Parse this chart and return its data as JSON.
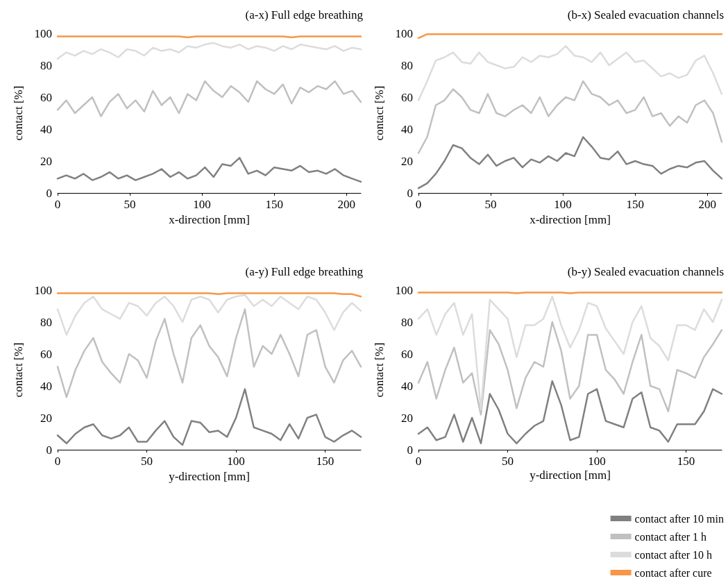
{
  "chart_data": [
    {
      "type": "line",
      "title": "(a-x) Full edge breathing",
      "xlabel": "x-direction [mm]",
      "ylabel": "contact [%]",
      "xlim": [
        0,
        210
      ],
      "xticks": [
        0,
        50,
        100,
        150,
        200
      ],
      "ylim": [
        0,
        100
      ],
      "yticks": [
        0,
        20,
        40,
        60,
        80,
        100
      ],
      "grid": false,
      "legend": false,
      "marker": "none",
      "line_style": "solid",
      "x": [
        0,
        6,
        12,
        18,
        24,
        30,
        36,
        42,
        48,
        54,
        60,
        66,
        72,
        78,
        84,
        90,
        96,
        102,
        108,
        114,
        120,
        126,
        132,
        138,
        144,
        150,
        156,
        162,
        168,
        174,
        180,
        186,
        192,
        198,
        204,
        210
      ],
      "series": [
        {
          "color": "#808080",
          "values": [
            9,
            11,
            9,
            12,
            8,
            10,
            13,
            9,
            11,
            8,
            10,
            12,
            15,
            10,
            13,
            9,
            11,
            16,
            10,
            18,
            17,
            22,
            12,
            14,
            11,
            16,
            15,
            14,
            17,
            13,
            14,
            12,
            15,
            11,
            9,
            7
          ]
        },
        {
          "color": "#c0c0c0",
          "values": [
            52,
            58,
            50,
            55,
            60,
            48,
            57,
            62,
            53,
            58,
            51,
            64,
            55,
            60,
            50,
            62,
            58,
            70,
            64,
            60,
            67,
            63,
            57,
            70,
            65,
            62,
            68,
            56,
            66,
            63,
            67,
            65,
            70,
            62,
            64,
            57
          ]
        },
        {
          "color": "#dcdcdc",
          "values": [
            84,
            88,
            86,
            89,
            87,
            90,
            88,
            85,
            90,
            89,
            86,
            91,
            89,
            90,
            88,
            92,
            91,
            93,
            94,
            92,
            91,
            93,
            90,
            92,
            91,
            89,
            92,
            90,
            93,
            92,
            91,
            90,
            92,
            89,
            91,
            90
          ]
        },
        {
          "color": "#f79646",
          "values": [
            98,
            98,
            98,
            98,
            98,
            98,
            98,
            98,
            98,
            98,
            98,
            98,
            98,
            98,
            98,
            97.5,
            98,
            98,
            98,
            98,
            98,
            98,
            98,
            98,
            98,
            98,
            98,
            97.5,
            98,
            98,
            98,
            98,
            98,
            98,
            98,
            98
          ]
        }
      ]
    },
    {
      "type": "line",
      "title": "(b-x) Sealed evacuation channels",
      "xlabel": "x-direction [mm]",
      "ylabel": "contact [%]",
      "xlim": [
        0,
        210
      ],
      "xticks": [
        0,
        50,
        100,
        150,
        200
      ],
      "ylim": [
        0,
        100
      ],
      "yticks": [
        0,
        20,
        40,
        60,
        80,
        100
      ],
      "grid": false,
      "legend": false,
      "marker": "none",
      "line_style": "solid",
      "x": [
        0,
        6,
        12,
        18,
        24,
        30,
        36,
        42,
        48,
        54,
        60,
        66,
        72,
        78,
        84,
        90,
        96,
        102,
        108,
        114,
        120,
        126,
        132,
        138,
        144,
        150,
        156,
        162,
        168,
        174,
        180,
        186,
        192,
        198,
        204,
        210
      ],
      "series": [
        {
          "color": "#808080",
          "values": [
            3,
            6,
            12,
            20,
            30,
            28,
            22,
            18,
            24,
            17,
            20,
            22,
            16,
            21,
            19,
            23,
            20,
            25,
            23,
            35,
            29,
            22,
            21,
            26,
            18,
            20,
            18,
            17,
            12,
            15,
            17,
            16,
            19,
            20,
            14,
            9
          ]
        },
        {
          "color": "#c0c0c0",
          "values": [
            25,
            35,
            55,
            58,
            65,
            60,
            52,
            50,
            62,
            50,
            48,
            52,
            55,
            50,
            60,
            48,
            55,
            60,
            58,
            70,
            62,
            60,
            55,
            58,
            50,
            52,
            60,
            48,
            50,
            42,
            48,
            44,
            55,
            58,
            50,
            32
          ]
        },
        {
          "color": "#dcdcdc",
          "values": [
            58,
            70,
            83,
            85,
            88,
            82,
            81,
            88,
            82,
            80,
            78,
            79,
            85,
            82,
            86,
            85,
            87,
            92,
            86,
            85,
            82,
            88,
            80,
            84,
            88,
            82,
            83,
            78,
            73,
            75,
            72,
            74,
            83,
            86,
            75,
            62
          ]
        },
        {
          "color": "#f79646",
          "values": [
            97,
            99.5,
            99.5,
            99.5,
            99.5,
            99.5,
            99.5,
            99.5,
            99.5,
            99.5,
            99.5,
            99.5,
            99.5,
            99.5,
            99.5,
            99.5,
            99.5,
            99.5,
            99.5,
            99.5,
            99.5,
            99.5,
            99.5,
            99.5,
            99.5,
            99.5,
            99.5,
            99.5,
            99.5,
            99.5,
            99.5,
            99.5,
            99.5,
            99.5,
            99.5,
            99.5
          ]
        }
      ]
    },
    {
      "type": "line",
      "title": "(a-y) Full edge breathing",
      "xlabel": "y-direction [mm]",
      "ylabel": "contact [%]",
      "xlim": [
        0,
        170
      ],
      "xticks": [
        0,
        50,
        100,
        150
      ],
      "ylim": [
        0,
        100
      ],
      "yticks": [
        0,
        20,
        40,
        60,
        80,
        100
      ],
      "grid": false,
      "legend": false,
      "marker": "none",
      "line_style": "solid",
      "x": [
        0,
        5,
        10,
        15,
        20,
        25,
        30,
        35,
        40,
        45,
        50,
        55,
        60,
        65,
        70,
        75,
        80,
        85,
        90,
        95,
        100,
        105,
        110,
        115,
        120,
        125,
        130,
        135,
        140,
        145,
        150,
        155,
        160,
        165,
        170
      ],
      "series": [
        {
          "color": "#808080",
          "values": [
            9,
            4,
            10,
            14,
            16,
            9,
            7,
            9,
            14,
            5,
            5,
            12,
            18,
            8,
            3,
            18,
            17,
            11,
            12,
            8,
            20,
            38,
            14,
            12,
            10,
            6,
            16,
            7,
            20,
            22,
            8,
            5,
            9,
            12,
            8
          ]
        },
        {
          "color": "#c0c0c0",
          "values": [
            52,
            33,
            50,
            62,
            70,
            55,
            48,
            42,
            60,
            56,
            45,
            68,
            82,
            60,
            42,
            70,
            78,
            65,
            58,
            46,
            70,
            88,
            52,
            65,
            60,
            72,
            60,
            46,
            72,
            75,
            52,
            42,
            56,
            62,
            52
          ]
        },
        {
          "color": "#dcdcdc",
          "values": [
            88,
            72,
            84,
            92,
            96,
            88,
            85,
            82,
            92,
            90,
            84,
            92,
            96,
            90,
            80,
            94,
            96,
            94,
            86,
            94,
            96,
            97,
            90,
            94,
            90,
            96,
            92,
            88,
            96,
            94,
            86,
            75,
            86,
            92,
            87
          ]
        },
        {
          "color": "#f79646",
          "values": [
            98,
            98,
            98,
            98,
            98,
            98,
            98,
            98,
            98,
            98,
            98,
            98,
            98,
            98,
            98,
            98,
            98,
            98,
            97.5,
            98,
            98,
            98,
            98,
            98,
            98,
            98,
            98,
            98,
            98,
            98,
            98,
            98,
            97.5,
            97.5,
            96
          ]
        }
      ]
    },
    {
      "type": "line",
      "title": "(b-y) Sealed evacuation channels",
      "xlabel": "y-direction [mm]",
      "ylabel": "contact [%]",
      "xlim": [
        0,
        170
      ],
      "xticks": [
        0,
        50,
        100,
        150
      ],
      "ylim": [
        0,
        100
      ],
      "yticks": [
        0,
        20,
        40,
        60,
        80,
        100
      ],
      "grid": false,
      "legend": "bottom right",
      "marker": "none",
      "line_style": "solid",
      "x": [
        0,
        5,
        10,
        15,
        20,
        25,
        30,
        35,
        40,
        45,
        50,
        55,
        60,
        65,
        70,
        75,
        80,
        85,
        90,
        95,
        100,
        105,
        110,
        115,
        120,
        125,
        130,
        135,
        140,
        145,
        150,
        155,
        160,
        165,
        170
      ],
      "series": [
        {
          "name": "contact after 10 min",
          "color": "#808080",
          "values": [
            10,
            14,
            6,
            8,
            22,
            5,
            20,
            4,
            35,
            25,
            10,
            4,
            10,
            15,
            18,
            43,
            28,
            6,
            8,
            35,
            38,
            18,
            16,
            14,
            32,
            36,
            14,
            12,
            5,
            16,
            16,
            16,
            24,
            38,
            35
          ]
        },
        {
          "name": "contact after 1 h",
          "color": "#c0c0c0",
          "values": [
            42,
            55,
            32,
            50,
            64,
            42,
            48,
            22,
            75,
            66,
            50,
            26,
            45,
            55,
            52,
            80,
            62,
            32,
            40,
            72,
            72,
            50,
            44,
            35,
            55,
            72,
            40,
            38,
            24,
            50,
            48,
            45,
            58,
            66,
            75
          ]
        },
        {
          "name": "contact after 10 h",
          "color": "#dcdcdc",
          "values": [
            82,
            88,
            72,
            85,
            92,
            72,
            85,
            25,
            94,
            88,
            82,
            58,
            78,
            78,
            82,
            96,
            78,
            64,
            75,
            92,
            90,
            76,
            68,
            60,
            80,
            90,
            70,
            65,
            56,
            78,
            78,
            75,
            88,
            80,
            94
          ]
        },
        {
          "name": "contact after cure",
          "color": "#f79646",
          "values": [
            98.5,
            98.5,
            98.5,
            98.5,
            98.5,
            98.5,
            98.5,
            98.5,
            98.5,
            98.5,
            98.5,
            98,
            98.5,
            98.5,
            98.5,
            98.5,
            98.5,
            98,
            98.5,
            98.5,
            98.5,
            98.5,
            98.5,
            98.5,
            98.5,
            98.5,
            98.5,
            98.5,
            98.5,
            98.5,
            98.5,
            98.5,
            98.5,
            98.5,
            98.5
          ]
        }
      ]
    }
  ]
}
